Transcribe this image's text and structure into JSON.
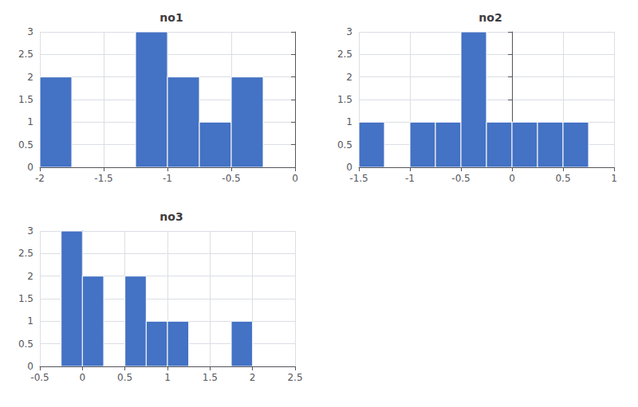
{
  "chart_data": [
    {
      "type": "histogram",
      "title": "no1",
      "bins": [
        -2.0,
        -1.75,
        -1.5,
        -1.25,
        -1.0,
        -0.75,
        -0.5,
        -0.25,
        0.0
      ],
      "values": [
        2,
        0,
        0,
        3,
        2,
        1,
        2,
        0
      ],
      "color": "#4472C4",
      "xlim": [
        -2.0,
        0.0
      ],
      "xticks": [
        -2,
        -1.5,
        -1,
        -0.5,
        0
      ],
      "ylim": [
        0.0,
        3.0
      ],
      "yticks": [
        0.0,
        0.5,
        1.0,
        1.5,
        2.0,
        2.5,
        3.0
      ],
      "grid": true
    },
    {
      "type": "histogram",
      "title": "no2",
      "bins": [
        -1.5,
        -1.25,
        -1.0,
        -0.75,
        -0.5,
        -0.25,
        0.0,
        0.25,
        0.5,
        0.75,
        1.0
      ],
      "values": [
        1,
        0,
        1,
        1,
        3,
        1,
        1,
        1,
        1,
        0
      ],
      "color": "#4472C4",
      "xlim": [
        -1.5,
        1.0
      ],
      "xticks": [
        -1.5,
        -1,
        -0.5,
        0,
        0.5,
        1
      ],
      "ylim": [
        0.0,
        3.0
      ],
      "yticks": [
        0.0,
        0.5,
        1.0,
        1.5,
        2.0,
        2.5,
        3.0
      ],
      "grid": true
    },
    {
      "type": "histogram",
      "title": "no3",
      "bins": [
        -0.5,
        -0.25,
        0.0,
        0.25,
        0.5,
        0.75,
        1.0,
        1.25,
        1.5,
        1.75,
        2.0,
        2.25,
        2.5
      ],
      "values": [
        0,
        3,
        2,
        0,
        2,
        1,
        1,
        0,
        0,
        1,
        0,
        0
      ],
      "color": "#4472C4",
      "xlim": [
        -0.5,
        2.5
      ],
      "xticks": [
        -0.5,
        0,
        0.5,
        1,
        1.5,
        2,
        2.5
      ],
      "ylim": [
        0.0,
        3.0
      ],
      "yticks": [
        0.0,
        0.5,
        1.0,
        1.5,
        2.0,
        2.5,
        3.0
      ],
      "grid": true
    }
  ]
}
